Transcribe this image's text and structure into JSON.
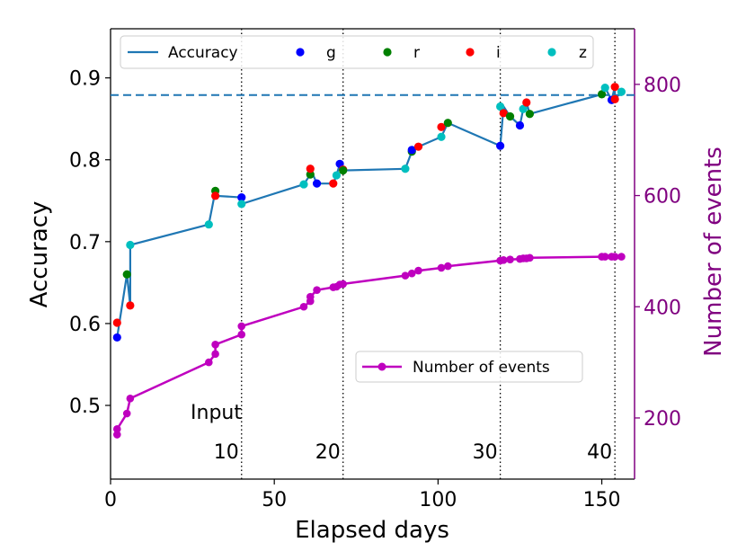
{
  "chart_data": {
    "type": "line",
    "xlabel": "Elapsed days",
    "ylabel_left": "Accuracy",
    "ylabel_right": "Number of events",
    "xlim": [
      0,
      160
    ],
    "ylim_left": [
      0.41,
      0.96
    ],
    "ylim_right": [
      90,
      900
    ],
    "xticks": [
      0,
      50,
      100,
      150
    ],
    "yticks_left": [
      0.5,
      0.6,
      0.7,
      0.8,
      0.9
    ],
    "yticks_left_labels": [
      "0.5",
      "0.6",
      "0.7",
      "0.8",
      "0.9"
    ],
    "yticks_right": [
      200,
      400,
      600,
      800
    ],
    "colors": {
      "accuracy": "#1f77b4",
      "events": "#bf00bf",
      "right_axis": "#800080",
      "g": "#0000ff",
      "r": "#008000",
      "i": "#ff0000",
      "z": "#00bfbf"
    },
    "accuracy_line": {
      "name": "Accuracy",
      "x": [
        2,
        5,
        6,
        6,
        30,
        32,
        32,
        40,
        40,
        59,
        61,
        61,
        63,
        68,
        69,
        70,
        71,
        71,
        90,
        92,
        94,
        101,
        103,
        119,
        120,
        122,
        125,
        126,
        127,
        128,
        150,
        151,
        153,
        154,
        154,
        156
      ],
      "y": [
        0.583,
        0.66,
        0.622,
        0.696,
        0.721,
        0.762,
        0.756,
        0.754,
        0.746,
        0.77,
        0.782,
        0.789,
        0.771,
        0.771,
        0.781,
        0.795,
        0.788,
        0.787,
        0.789,
        0.81,
        0.816,
        0.828,
        0.845,
        0.817,
        0.865,
        0.853,
        0.842,
        0.862,
        0.87,
        0.856,
        0.88,
        0.888,
        0.873,
        0.889,
        0.874,
        0.883
      ]
    },
    "accuracy_points": [
      {
        "x": 2,
        "y": 0.583,
        "band": "g"
      },
      {
        "x": 2,
        "y": 0.601,
        "band": "i"
      },
      {
        "x": 5,
        "y": 0.66,
        "band": "r"
      },
      {
        "x": 6,
        "y": 0.622,
        "band": "i"
      },
      {
        "x": 6,
        "y": 0.696,
        "band": "z"
      },
      {
        "x": 30,
        "y": 0.721,
        "band": "z"
      },
      {
        "x": 32,
        "y": 0.762,
        "band": "r"
      },
      {
        "x": 32,
        "y": 0.756,
        "band": "i"
      },
      {
        "x": 40,
        "y": 0.754,
        "band": "g"
      },
      {
        "x": 40,
        "y": 0.746,
        "band": "z"
      },
      {
        "x": 59,
        "y": 0.77,
        "band": "z"
      },
      {
        "x": 61,
        "y": 0.782,
        "band": "r"
      },
      {
        "x": 61,
        "y": 0.789,
        "band": "i"
      },
      {
        "x": 63,
        "y": 0.771,
        "band": "g"
      },
      {
        "x": 68,
        "y": 0.771,
        "band": "i"
      },
      {
        "x": 69,
        "y": 0.781,
        "band": "z"
      },
      {
        "x": 70,
        "y": 0.795,
        "band": "g"
      },
      {
        "x": 71,
        "y": 0.788,
        "band": "i"
      },
      {
        "x": 71,
        "y": 0.787,
        "band": "r"
      },
      {
        "x": 90,
        "y": 0.789,
        "band": "z"
      },
      {
        "x": 92,
        "y": 0.81,
        "band": "r"
      },
      {
        "x": 92,
        "y": 0.812,
        "band": "g"
      },
      {
        "x": 94,
        "y": 0.816,
        "band": "i"
      },
      {
        "x": 101,
        "y": 0.828,
        "band": "z"
      },
      {
        "x": 101,
        "y": 0.84,
        "band": "i"
      },
      {
        "x": 103,
        "y": 0.845,
        "band": "r"
      },
      {
        "x": 119,
        "y": 0.817,
        "band": "g"
      },
      {
        "x": 119,
        "y": 0.865,
        "band": "z"
      },
      {
        "x": 120,
        "y": 0.857,
        "band": "i"
      },
      {
        "x": 122,
        "y": 0.853,
        "band": "r"
      },
      {
        "x": 125,
        "y": 0.842,
        "band": "g"
      },
      {
        "x": 126,
        "y": 0.862,
        "band": "z"
      },
      {
        "x": 127,
        "y": 0.87,
        "band": "i"
      },
      {
        "x": 128,
        "y": 0.856,
        "band": "r"
      },
      {
        "x": 150,
        "y": 0.88,
        "band": "r"
      },
      {
        "x": 151,
        "y": 0.888,
        "band": "z"
      },
      {
        "x": 153,
        "y": 0.873,
        "band": "g"
      },
      {
        "x": 154,
        "y": 0.889,
        "band": "i"
      },
      {
        "x": 154,
        "y": 0.874,
        "band": "i"
      },
      {
        "x": 156,
        "y": 0.883,
        "band": "z"
      }
    ],
    "events_series": {
      "name": "Number of events",
      "x": [
        2,
        2,
        5,
        6,
        30,
        32,
        32,
        40,
        40,
        59,
        61,
        61,
        63,
        68,
        69,
        70,
        71,
        90,
        92,
        94,
        101,
        103,
        119,
        120,
        122,
        125,
        126,
        127,
        128,
        150,
        151,
        153,
        154,
        156
      ],
      "y": [
        170,
        180,
        208,
        235,
        300,
        315,
        332,
        350,
        365,
        400,
        410,
        418,
        430,
        435,
        436,
        440,
        441,
        456,
        460,
        465,
        470,
        473,
        483,
        484,
        485,
        486,
        487,
        487,
        488,
        490,
        490,
        490,
        490,
        490
      ]
    },
    "threshold_line": {
      "y": 0.879,
      "style": "dashed"
    },
    "vertical_markers": [
      {
        "x": 40,
        "label": "10"
      },
      {
        "x": 71,
        "label": "20"
      },
      {
        "x": 119,
        "label": "30"
      },
      {
        "x": 154,
        "label": "40"
      }
    ],
    "input_label": "Input",
    "legend_top": [
      {
        "label": "Accuracy",
        "kind": "line"
      },
      {
        "label": "g",
        "band": "g"
      },
      {
        "label": "r",
        "band": "r"
      },
      {
        "label": "i",
        "band": "i"
      },
      {
        "label": "z",
        "band": "z"
      }
    ],
    "legend_bottom_label": "Number of events"
  }
}
